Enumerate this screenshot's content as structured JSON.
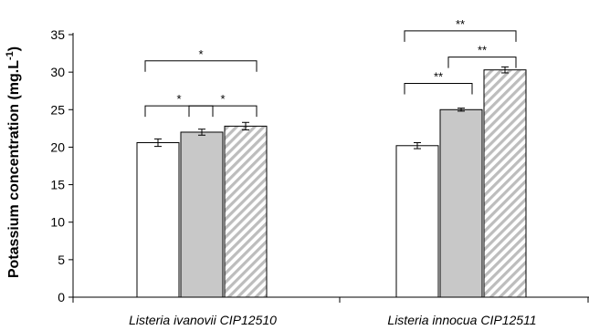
{
  "chart_data": {
    "type": "bar",
    "title": "",
    "xlabel": "",
    "ylabel": "Potassium concentration (mg.L",
    "ylabel_superscript": "-1",
    "ylabel_close": ")",
    "ylim": [
      0,
      35
    ],
    "yticks": [
      0,
      5,
      10,
      15,
      20,
      25,
      30,
      35
    ],
    "grid": false,
    "legend": "none",
    "categories": [
      "Listeria ivanovii CIP12510",
      "Listeria innocua CIP12511"
    ],
    "series": [
      {
        "fill": "#ffffff",
        "pattern": "none",
        "values": [
          20.6,
          20.2
        ],
        "errors": [
          0.5,
          0.4
        ]
      },
      {
        "fill": "#c8c8c8",
        "pattern": "none",
        "values": [
          22.0,
          25.0
        ],
        "errors": [
          0.4,
          0.2
        ]
      },
      {
        "fill": "#ffffff",
        "pattern": "diagonal",
        "values": [
          22.8,
          30.3
        ],
        "errors": [
          0.5,
          0.4
        ]
      }
    ],
    "significance": [
      {
        "category": 0,
        "from_series": 0,
        "to_series": 1,
        "label": "*",
        "top": 25.5
      },
      {
        "category": 0,
        "from_series": 1,
        "to_series": 2,
        "label": "*",
        "top": 25.5
      },
      {
        "category": 0,
        "from_series": 0,
        "to_series": 2,
        "label": "*",
        "top": 31.5
      },
      {
        "category": 1,
        "from_series": 0,
        "to_series": 1,
        "label": "**",
        "top": 28.5
      },
      {
        "category": 1,
        "from_series": 1,
        "to_series": 2,
        "label": "**",
        "top": 32.0
      },
      {
        "category": 1,
        "from_series": 0,
        "to_series": 2,
        "label": "**",
        "top": 35.5
      }
    ]
  }
}
